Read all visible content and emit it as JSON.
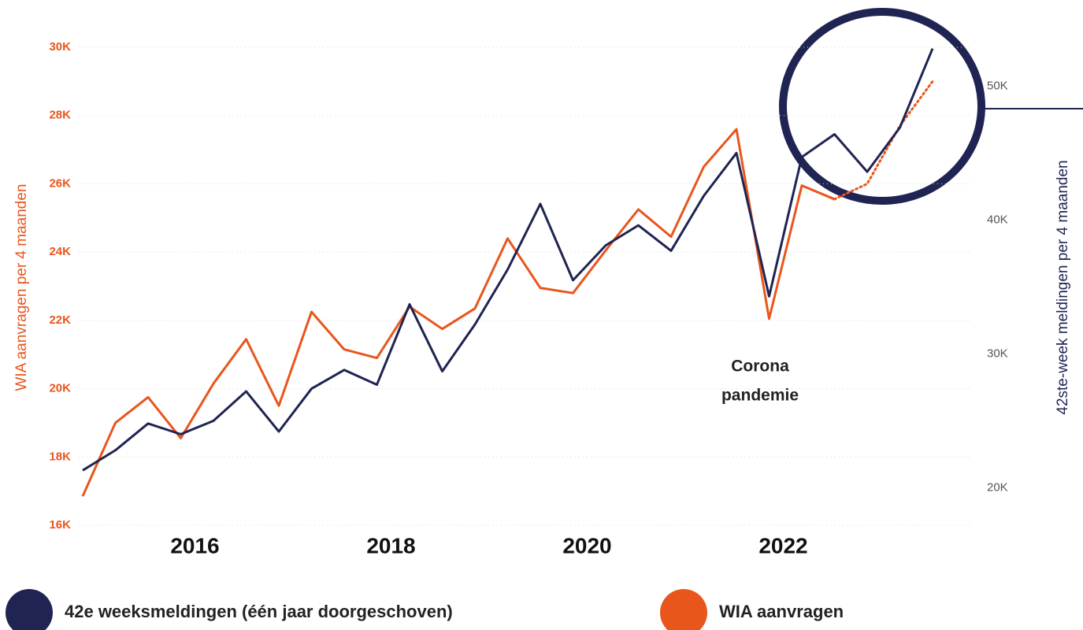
{
  "chart_data": {
    "type": "line",
    "categories": [
      null,
      null,
      null,
      "2016",
      null,
      null,
      null,
      null,
      null,
      "2018",
      null,
      null,
      null,
      null,
      null,
      "2020",
      null,
      null,
      null,
      null,
      null,
      "2022",
      null,
      null,
      null,
      null,
      null
    ],
    "series": [
      {
        "name": "42e weeksmeldingen (één jaar doorgeschoven)",
        "color": "#1f2452",
        "axis": "y2",
        "values": [
          21300,
          22800,
          24800,
          24000,
          25000,
          27200,
          24200,
          27400,
          28800,
          27700,
          33700,
          28700,
          32200,
          36300,
          41200,
          35500,
          38100,
          39600,
          37700,
          41800,
          45000,
          34300,
          44700,
          46400,
          43600,
          46900,
          52800
        ]
      },
      {
        "name": "WIA aanvragen",
        "color": "#e8561c",
        "values": [
          16850,
          19000,
          19750,
          18550,
          20150,
          21450,
          19500,
          22250,
          21150,
          20900,
          22400,
          21750,
          22350,
          24400,
          22950,
          22800,
          24050,
          25250,
          24450,
          26500,
          27600,
          22050,
          25950,
          25550,
          null,
          null,
          null
        ]
      },
      {
        "color": "#e8561c",
        "dotted": true,
        "values": [
          null,
          null,
          null,
          null,
          null,
          null,
          null,
          null,
          null,
          null,
          null,
          null,
          null,
          null,
          null,
          null,
          null,
          null,
          null,
          null,
          null,
          null,
          null,
          25550,
          26000,
          27700,
          29000
        ]
      }
    ],
    "ylabel": "WIA aanvragen per 4 maanden",
    "y2label": "42ste-week meldingen per 4 maanden",
    "ylim": [
      16000,
      30000
    ],
    "yticks": [
      {
        "value": 16000,
        "label": "16K"
      },
      {
        "value": 18000,
        "label": "18K"
      },
      {
        "value": 20000,
        "label": "20K"
      },
      {
        "value": 22000,
        "label": "22K"
      },
      {
        "value": 24000,
        "label": "24K"
      },
      {
        "value": 26000,
        "label": "26K"
      },
      {
        "value": 28000,
        "label": "28K"
      },
      {
        "value": 30000,
        "label": "30K"
      }
    ],
    "y2lim": [
      17200,
      52900
    ],
    "y2ticks": [
      {
        "value": 20000,
        "label": "20K"
      },
      {
        "value": 30000,
        "label": "30K"
      },
      {
        "value": 40000,
        "label": "40K"
      },
      {
        "value": 50000,
        "label": "50K"
      }
    ],
    "annotation": [
      "Corona",
      "pandemie"
    ],
    "grid": true
  }
}
